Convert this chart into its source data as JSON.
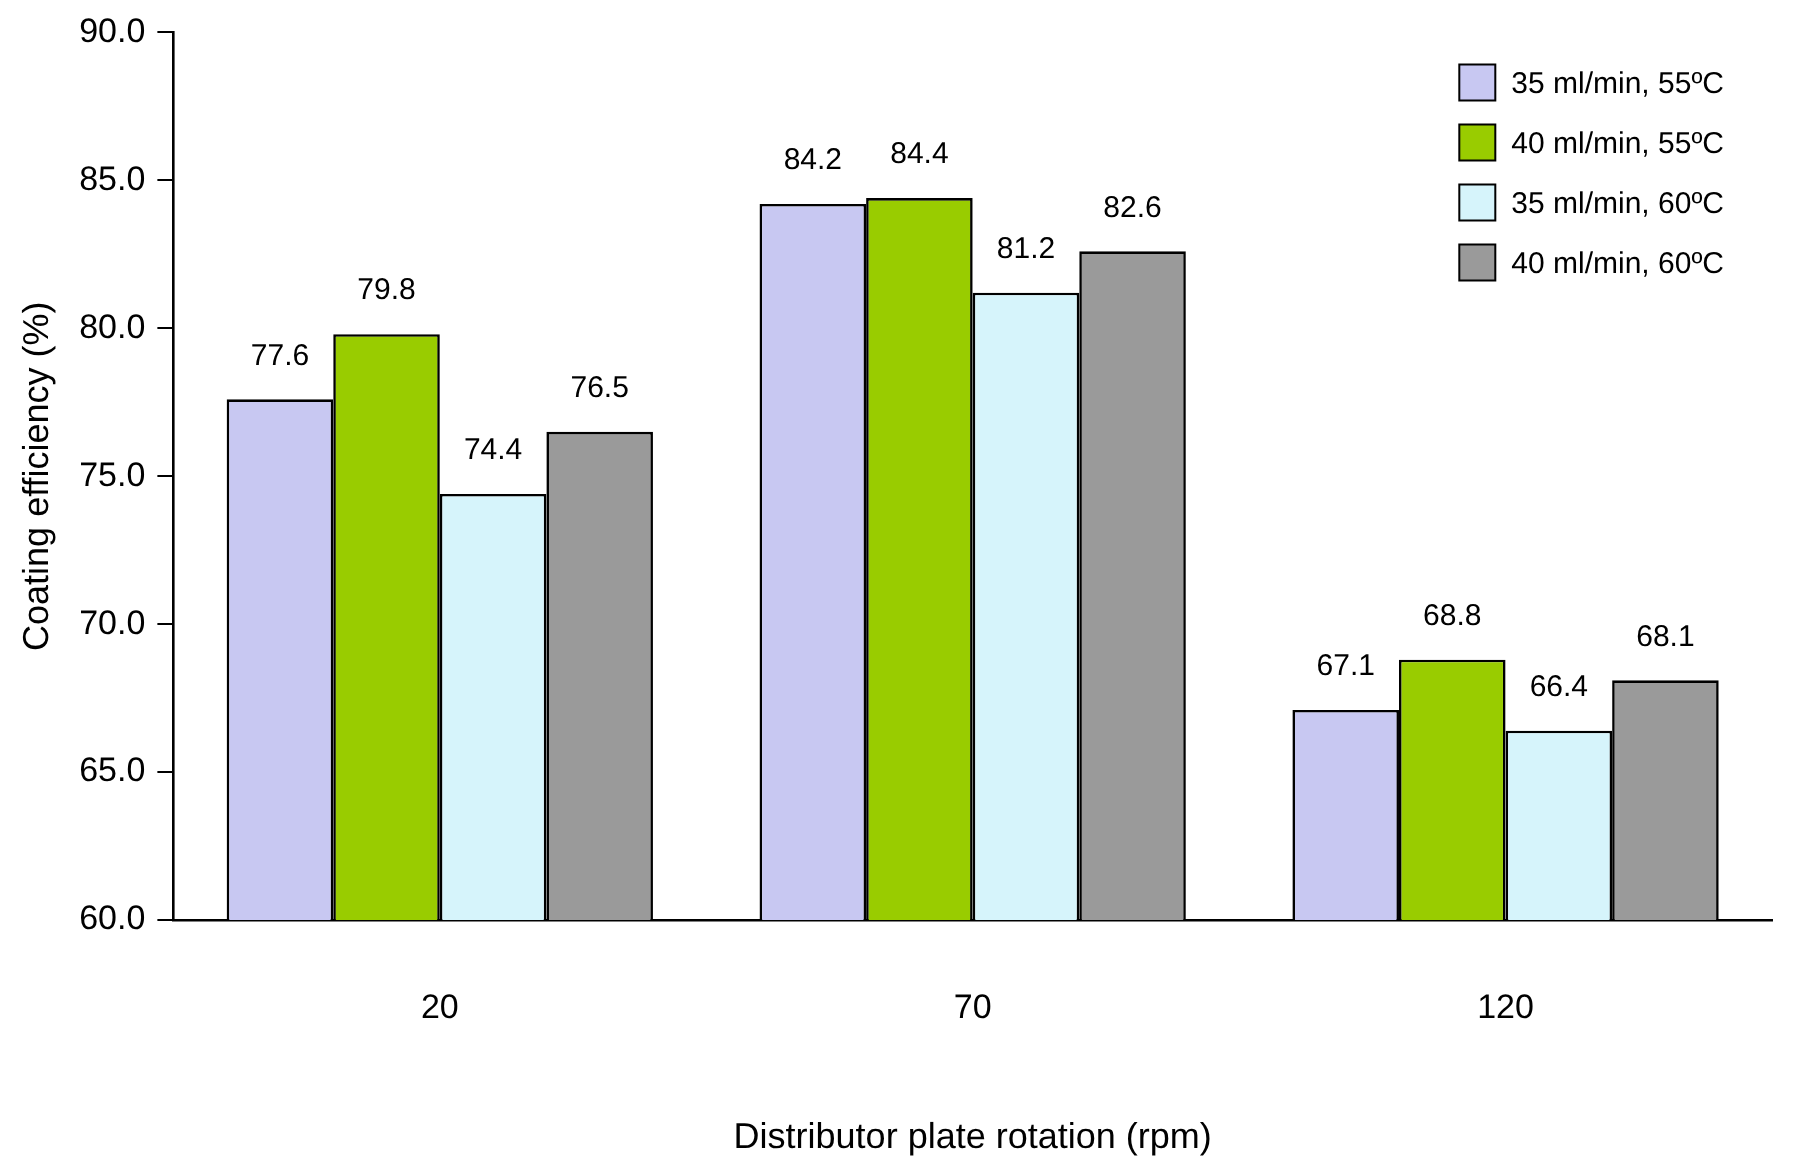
{
  "chart_data": {
    "type": "bar",
    "xlabel": "Distributor plate rotation (rpm)",
    "ylabel": "Coating efficiency (%)",
    "categories": [
      "20",
      "70",
      "120"
    ],
    "series": [
      {
        "name": "35 ml/min, 55ºC",
        "color": "#c8c8f2",
        "values": [
          77.6,
          84.2,
          67.1
        ]
      },
      {
        "name": "40 ml/min, 55ºC",
        "color": "#99cc00",
        "values": [
          79.8,
          84.4,
          68.8
        ]
      },
      {
        "name": "35 ml/min, 60ºC",
        "color": "#d6f4fb",
        "values": [
          74.4,
          81.2,
          66.4
        ]
      },
      {
        "name": "40 ml/min, 60ºC",
        "color": "#9a9a9a",
        "values": [
          76.5,
          82.6,
          68.1
        ]
      }
    ],
    "ylim": [
      60,
      90
    ],
    "yticks": [
      {
        "value": 60,
        "label": "60.0"
      },
      {
        "value": 65,
        "label": "65.0"
      },
      {
        "value": 70,
        "label": "70.0"
      },
      {
        "value": 75,
        "label": "75.0"
      },
      {
        "value": 80,
        "label": "80.0"
      },
      {
        "value": 85,
        "label": "85.0"
      },
      {
        "value": 90,
        "label": "90.0"
      }
    ],
    "grid": false,
    "legend": "top right",
    "data_labels": true
  }
}
